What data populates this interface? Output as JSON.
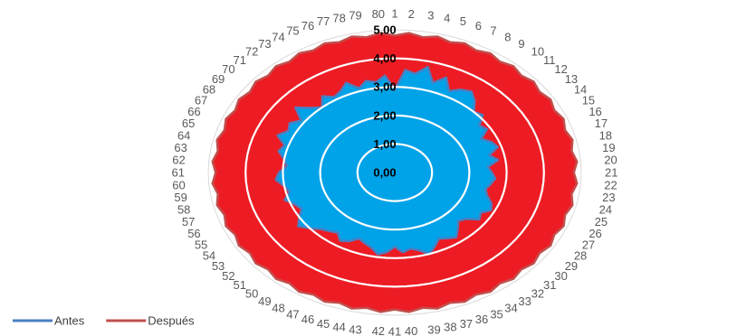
{
  "chart_data": {
    "type": "radar",
    "title": "",
    "categories": [
      "1",
      "2",
      "3",
      "4",
      "5",
      "6",
      "7",
      "8",
      "9",
      "10",
      "11",
      "12",
      "13",
      "14",
      "15",
      "16",
      "17",
      "18",
      "19",
      "20",
      "21",
      "22",
      "23",
      "24",
      "25",
      "26",
      "27",
      "28",
      "29",
      "30",
      "31",
      "32",
      "33",
      "34",
      "35",
      "36",
      "37",
      "38",
      "39",
      "40",
      "41",
      "42",
      "43",
      "44",
      "45",
      "46",
      "47",
      "48",
      "49",
      "50",
      "51",
      "52",
      "53",
      "54",
      "55",
      "56",
      "57",
      "58",
      "59",
      "60",
      "61",
      "62",
      "63",
      "64",
      "65",
      "66",
      "67",
      "68",
      "69",
      "70",
      "71",
      "72",
      "73",
      "74",
      "75",
      "76",
      "77",
      "78",
      "79",
      "80"
    ],
    "radial_axis": {
      "min": 0,
      "max": 5,
      "ticks": [
        "0,00",
        "1,00",
        "2,00",
        "3,00",
        "4,00",
        "5,00"
      ]
    },
    "series": [
      {
        "name": "Antes",
        "color": "#00a2e8",
        "line_color": "#4a7fc1",
        "values": [
          2.9,
          3.6,
          3.5,
          3.8,
          3.3,
          3.6,
          3.2,
          3.4,
          3.5,
          3.3,
          3.0,
          3.1,
          2.8,
          2.9,
          2.6,
          2.8,
          2.9,
          2.6,
          2.8,
          2.5,
          2.6,
          2.7,
          2.6,
          2.5,
          2.6,
          2.8,
          2.9,
          2.7,
          2.8,
          2.5,
          2.4,
          2.6,
          2.8,
          2.7,
          2.6,
          2.8,
          3.0,
          2.8,
          2.7,
          2.8,
          2.6,
          2.8,
          2.9,
          2.7,
          2.6,
          2.5,
          2.7,
          2.8,
          2.6,
          2.7,
          2.8,
          3.0,
          3.2,
          3.0,
          2.8,
          2.9,
          3.1,
          2.9,
          3.0,
          3.2,
          3.1,
          2.9,
          3.0,
          3.2,
          3.1,
          3.4,
          3.2,
          3.3,
          3.1,
          3.5,
          3.2,
          3.0,
          3.3,
          3.1,
          3.2,
          3.4,
          3.1,
          3.3,
          3.2,
          3.4
        ]
      },
      {
        "name": "Después",
        "color": "#ed1c24",
        "line_color": "#c0504d",
        "values": [
          4.8,
          4.9,
          4.8,
          4.9,
          4.8,
          4.9,
          4.8,
          4.9,
          4.8,
          4.9,
          4.8,
          4.9,
          4.8,
          4.9,
          4.8,
          4.9,
          4.8,
          4.9,
          4.8,
          4.9,
          4.8,
          4.9,
          4.8,
          4.9,
          4.8,
          4.9,
          4.8,
          4.9,
          4.8,
          4.9,
          4.8,
          4.9,
          4.8,
          4.9,
          4.8,
          4.9,
          4.8,
          4.9,
          4.8,
          4.9,
          4.8,
          4.9,
          4.8,
          4.9,
          4.8,
          4.9,
          4.8,
          4.9,
          4.8,
          4.9,
          4.8,
          4.9,
          4.8,
          4.9,
          4.8,
          4.9,
          4.8,
          4.9,
          4.8,
          4.9,
          4.8,
          4.9,
          4.8,
          4.9,
          4.8,
          4.9,
          4.8,
          4.9,
          4.8,
          4.9,
          4.8,
          4.9,
          4.8,
          4.9,
          4.8,
          4.9,
          4.8,
          4.9,
          4.8,
          4.9
        ]
      }
    ],
    "grid": true,
    "legend_position": "bottom-left"
  }
}
